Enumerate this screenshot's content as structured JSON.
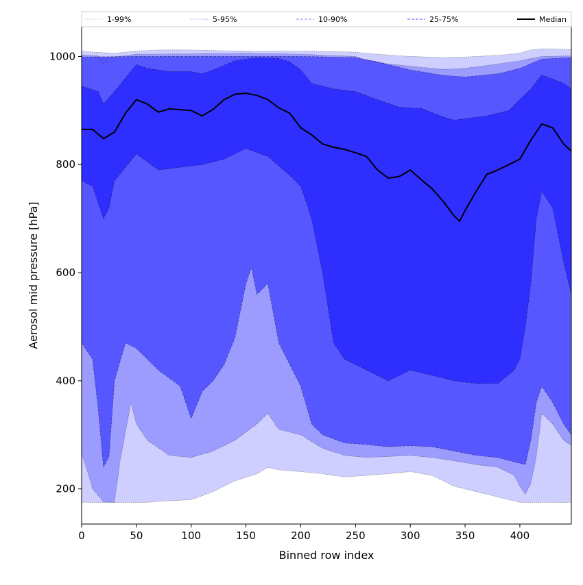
{
  "chart_data": {
    "type": "area",
    "xlabel": "Binned row index",
    "ylabel": "Aerosol mid pressure [hPa]",
    "xlim": [
      0,
      447
    ],
    "ylim": [
      135,
      1055
    ],
    "x_ticks": [
      0,
      50,
      100,
      150,
      200,
      250,
      300,
      350,
      400
    ],
    "y_ticks": [
      200,
      400,
      600,
      800,
      1000
    ],
    "grid": false,
    "legend_position": "top",
    "bands": [
      {
        "name": "1-99%",
        "color": "#cfcfff",
        "line_style": "dotted",
        "upper": [
          [
            0,
            1010
          ],
          [
            10,
            1008
          ],
          [
            20,
            1007
          ],
          [
            30,
            1006
          ],
          [
            50,
            1010
          ],
          [
            70,
            1012
          ],
          [
            100,
            1012
          ],
          [
            120,
            1011
          ],
          [
            150,
            1010
          ],
          [
            180,
            1010
          ],
          [
            200,
            1010
          ],
          [
            250,
            1008
          ],
          [
            270,
            1004
          ],
          [
            300,
            1000
          ],
          [
            330,
            998
          ],
          [
            350,
            999
          ],
          [
            380,
            1002
          ],
          [
            400,
            1006
          ],
          [
            410,
            1012
          ],
          [
            420,
            1014
          ],
          [
            447,
            1013
          ]
        ],
        "lower": [
          [
            0,
            175
          ],
          [
            60,
            175
          ],
          [
            80,
            178
          ],
          [
            100,
            180
          ],
          [
            120,
            195
          ],
          [
            140,
            215
          ],
          [
            160,
            228
          ],
          [
            170,
            240
          ],
          [
            180,
            235
          ],
          [
            200,
            232
          ],
          [
            220,
            228
          ],
          [
            240,
            222
          ],
          [
            260,
            225
          ],
          [
            280,
            228
          ],
          [
            300,
            232
          ],
          [
            320,
            225
          ],
          [
            330,
            215
          ],
          [
            340,
            205
          ],
          [
            360,
            195
          ],
          [
            380,
            185
          ],
          [
            400,
            175
          ],
          [
            447,
            175
          ]
        ]
      },
      {
        "name": "5-95%",
        "color": "#9c9cff",
        "line_style": "dotted",
        "upper": [
          [
            0,
            1003
          ],
          [
            15,
            1001
          ],
          [
            20,
            985
          ],
          [
            25,
            998
          ],
          [
            50,
            1004
          ],
          [
            100,
            1005
          ],
          [
            150,
            1006
          ],
          [
            200,
            1004
          ],
          [
            250,
            1000
          ],
          [
            260,
            993
          ],
          [
            280,
            986
          ],
          [
            300,
            982
          ],
          [
            330,
            976
          ],
          [
            350,
            978
          ],
          [
            380,
            986
          ],
          [
            400,
            992
          ],
          [
            420,
            1000
          ],
          [
            447,
            1001
          ]
        ],
        "lower": [
          [
            0,
            265
          ],
          [
            5,
            235
          ],
          [
            10,
            200
          ],
          [
            20,
            176
          ],
          [
            30,
            175
          ],
          [
            35,
            250
          ],
          [
            45,
            360
          ],
          [
            50,
            320
          ],
          [
            60,
            290
          ],
          [
            80,
            262
          ],
          [
            100,
            258
          ],
          [
            120,
            270
          ],
          [
            140,
            290
          ],
          [
            160,
            320
          ],
          [
            170,
            340
          ],
          [
            180,
            310
          ],
          [
            200,
            300
          ],
          [
            220,
            275
          ],
          [
            240,
            262
          ],
          [
            260,
            258
          ],
          [
            280,
            260
          ],
          [
            300,
            262
          ],
          [
            320,
            258
          ],
          [
            340,
            252
          ],
          [
            360,
            245
          ],
          [
            380,
            240
          ],
          [
            395,
            225
          ],
          [
            400,
            205
          ],
          [
            405,
            190
          ],
          [
            410,
            210
          ],
          [
            415,
            260
          ],
          [
            420,
            340
          ],
          [
            430,
            320
          ],
          [
            440,
            290
          ],
          [
            447,
            280
          ]
        ]
      },
      {
        "name": "10-90%",
        "color": "#5757ff",
        "line_style": "dashed",
        "upper": [
          [
            0,
            999
          ],
          [
            50,
            1000
          ],
          [
            100,
            1000
          ],
          [
            150,
            1000
          ],
          [
            200,
            1000
          ],
          [
            250,
            998
          ],
          [
            270,
            990
          ],
          [
            300,
            975
          ],
          [
            330,
            965
          ],
          [
            350,
            962
          ],
          [
            380,
            968
          ],
          [
            400,
            978
          ],
          [
            420,
            995
          ],
          [
            447,
            998
          ]
        ],
        "lower": [
          [
            0,
            470
          ],
          [
            10,
            440
          ],
          [
            15,
            350
          ],
          [
            20,
            240
          ],
          [
            25,
            260
          ],
          [
            30,
            400
          ],
          [
            40,
            470
          ],
          [
            50,
            460
          ],
          [
            70,
            420
          ],
          [
            90,
            390
          ],
          [
            100,
            330
          ],
          [
            110,
            380
          ],
          [
            120,
            400
          ],
          [
            130,
            430
          ],
          [
            140,
            480
          ],
          [
            150,
            580
          ],
          [
            155,
            610
          ],
          [
            160,
            560
          ],
          [
            170,
            580
          ],
          [
            180,
            470
          ],
          [
            200,
            390
          ],
          [
            210,
            320
          ],
          [
            220,
            300
          ],
          [
            240,
            285
          ],
          [
            260,
            282
          ],
          [
            280,
            278
          ],
          [
            300,
            280
          ],
          [
            320,
            278
          ],
          [
            340,
            270
          ],
          [
            360,
            262
          ],
          [
            380,
            258
          ],
          [
            395,
            250
          ],
          [
            405,
            245
          ],
          [
            410,
            290
          ],
          [
            415,
            360
          ],
          [
            420,
            390
          ],
          [
            430,
            360
          ],
          [
            440,
            320
          ],
          [
            447,
            300
          ]
        ]
      },
      {
        "name": "25-75%",
        "color": "#2e2eff",
        "line_style": "dashed",
        "upper": [
          [
            0,
            945
          ],
          [
            15,
            935
          ],
          [
            20,
            912
          ],
          [
            30,
            935
          ],
          [
            50,
            985
          ],
          [
            60,
            978
          ],
          [
            80,
            972
          ],
          [
            100,
            972
          ],
          [
            110,
            968
          ],
          [
            120,
            975
          ],
          [
            140,
            992
          ],
          [
            160,
            998
          ],
          [
            180,
            996
          ],
          [
            190,
            990
          ],
          [
            200,
            975
          ],
          [
            210,
            950
          ],
          [
            230,
            940
          ],
          [
            250,
            935
          ],
          [
            270,
            920
          ],
          [
            290,
            906
          ],
          [
            310,
            904
          ],
          [
            330,
            888
          ],
          [
            340,
            882
          ],
          [
            350,
            885
          ],
          [
            370,
            890
          ],
          [
            390,
            900
          ],
          [
            400,
            920
          ],
          [
            410,
            940
          ],
          [
            420,
            966
          ],
          [
            440,
            950
          ],
          [
            447,
            940
          ]
        ],
        "lower": [
          [
            0,
            770
          ],
          [
            10,
            760
          ],
          [
            20,
            700
          ],
          [
            25,
            720
          ],
          [
            30,
            770
          ],
          [
            50,
            820
          ],
          [
            70,
            790
          ],
          [
            90,
            795
          ],
          [
            110,
            800
          ],
          [
            130,
            810
          ],
          [
            150,
            830
          ],
          [
            170,
            815
          ],
          [
            190,
            780
          ],
          [
            200,
            760
          ],
          [
            210,
            700
          ],
          [
            220,
            600
          ],
          [
            230,
            470
          ],
          [
            240,
            440
          ],
          [
            260,
            420
          ],
          [
            280,
            400
          ],
          [
            300,
            420
          ],
          [
            320,
            410
          ],
          [
            340,
            400
          ],
          [
            360,
            395
          ],
          [
            380,
            395
          ],
          [
            395,
            420
          ],
          [
            400,
            440
          ],
          [
            405,
            500
          ],
          [
            410,
            580
          ],
          [
            415,
            700
          ],
          [
            420,
            750
          ],
          [
            430,
            720
          ],
          [
            440,
            620
          ],
          [
            447,
            560
          ]
        ]
      }
    ],
    "series": [
      {
        "name": "Median",
        "color": "#000000",
        "values": [
          [
            0,
            865
          ],
          [
            10,
            865
          ],
          [
            20,
            848
          ],
          [
            30,
            860
          ],
          [
            40,
            895
          ],
          [
            50,
            920
          ],
          [
            60,
            912
          ],
          [
            70,
            897
          ],
          [
            80,
            903
          ],
          [
            100,
            900
          ],
          [
            110,
            890
          ],
          [
            120,
            902
          ],
          [
            130,
            920
          ],
          [
            140,
            930
          ],
          [
            150,
            932
          ],
          [
            160,
            928
          ],
          [
            170,
            920
          ],
          [
            180,
            905
          ],
          [
            190,
            895
          ],
          [
            200,
            868
          ],
          [
            210,
            855
          ],
          [
            220,
            838
          ],
          [
            230,
            832
          ],
          [
            240,
            828
          ],
          [
            250,
            822
          ],
          [
            260,
            815
          ],
          [
            270,
            790
          ],
          [
            280,
            775
          ],
          [
            290,
            778
          ],
          [
            300,
            790
          ],
          [
            310,
            772
          ],
          [
            320,
            755
          ],
          [
            330,
            732
          ],
          [
            340,
            705
          ],
          [
            345,
            695
          ],
          [
            350,
            715
          ],
          [
            360,
            750
          ],
          [
            370,
            782
          ],
          [
            380,
            790
          ],
          [
            390,
            800
          ],
          [
            400,
            810
          ],
          [
            410,
            845
          ],
          [
            420,
            875
          ],
          [
            430,
            868
          ],
          [
            440,
            838
          ],
          [
            447,
            825
          ]
        ]
      }
    ]
  }
}
